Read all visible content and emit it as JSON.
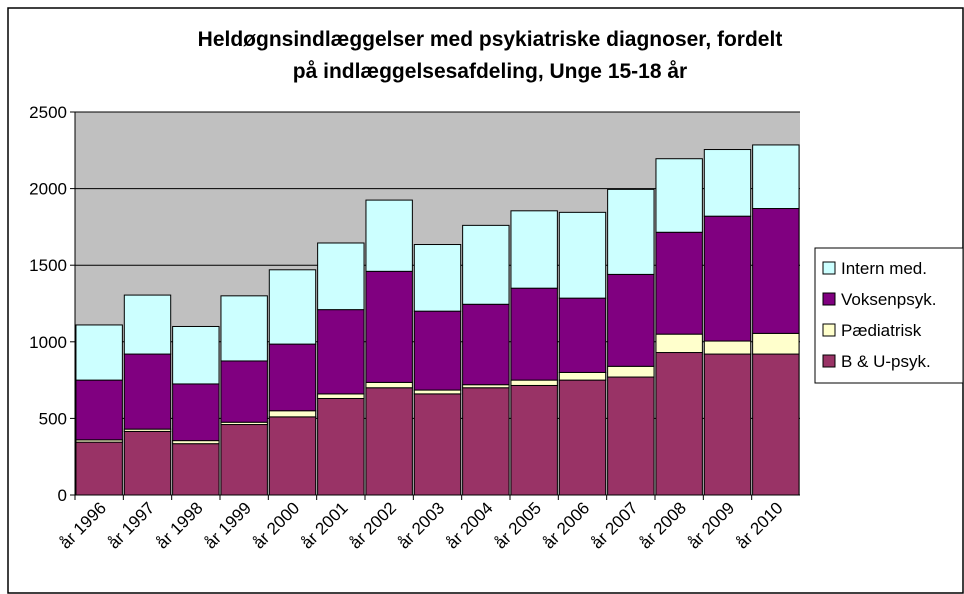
{
  "chart_data": {
    "type": "stacked_bar",
    "title": "Heldøgnsindlæggelser med psykiatriske diagnoser, fordelt på indlæggelsesafdeling, Unge 15-18 år",
    "categories": [
      "år 1996",
      "år 1997",
      "år 1998",
      "år 1999",
      "år 2000",
      "år 2001",
      "år 2002",
      "år 2003",
      "år 2004",
      "år 2005",
      "år 2006",
      "år 2007",
      "år 2008",
      "år 2009",
      "år 2010"
    ],
    "series": [
      {
        "name": "B & U-psyk.",
        "color": "#993366",
        "values": [
          345,
          415,
          335,
          460,
          510,
          630,
          700,
          660,
          700,
          715,
          750,
          770,
          930,
          920,
          920
        ]
      },
      {
        "name": "Pædiatrisk",
        "color": "#ffffcc",
        "values": [
          15,
          15,
          20,
          15,
          40,
          30,
          35,
          25,
          20,
          35,
          50,
          70,
          120,
          85,
          135
        ]
      },
      {
        "name": "Voksenpsyk.",
        "color": "#800080",
        "values": [
          390,
          490,
          370,
          400,
          435,
          550,
          725,
          515,
          525,
          600,
          485,
          600,
          665,
          815,
          815
        ]
      },
      {
        "name": "Intern med.",
        "color": "#ccffff",
        "values": [
          360,
          385,
          375,
          425,
          485,
          435,
          465,
          435,
          515,
          505,
          560,
          555,
          480,
          435,
          415
        ]
      }
    ],
    "ylim": [
      0,
      2500
    ],
    "yticks": [
      0,
      500,
      1000,
      1500,
      2000,
      2500
    ],
    "grid": true,
    "legend": "right"
  }
}
